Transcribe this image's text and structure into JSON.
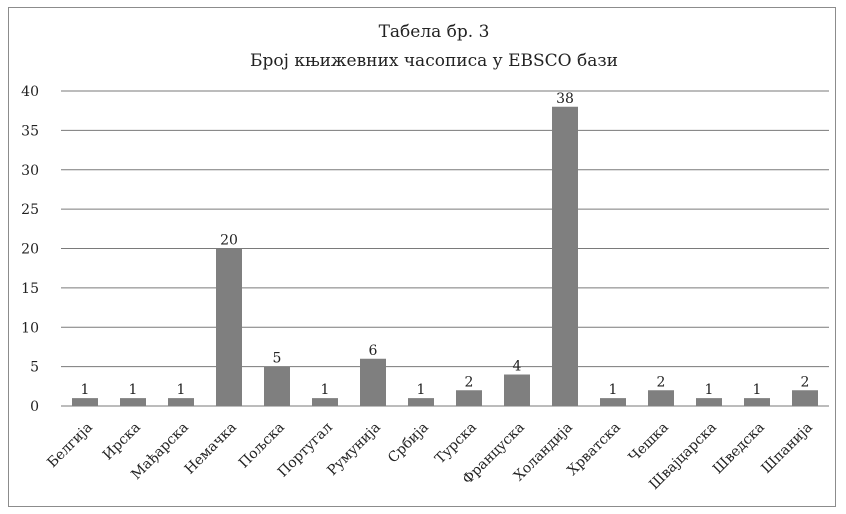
{
  "chart_data": {
    "type": "bar",
    "title": "Табела бр. 3",
    "subtitle": "Број књижевних часописа у EBSCO бази",
    "xlabel": "",
    "ylabel": "",
    "ylim": [
      0,
      40
    ],
    "yticks": [
      "0",
      "5",
      "10",
      "15",
      "20",
      "25",
      "30",
      "35",
      "40"
    ],
    "grid": true,
    "legend": "none",
    "bar_color": "#7f7f7f",
    "categories": [
      "Белгија",
      "Ирска",
      "Мађарска",
      "Немачка",
      "Пољска",
      "Португал",
      "Румунија",
      "Србија",
      "Турска",
      "Француска",
      "Холандија",
      "Хрватска",
      "Чешка",
      "Швајцарска",
      "Шведска",
      "Шпанија"
    ],
    "values": [
      1,
      1,
      1,
      20,
      5,
      1,
      6,
      1,
      2,
      4,
      38,
      1,
      2,
      1,
      1,
      2
    ],
    "data_labels": [
      "1",
      "1",
      "1",
      "20",
      "5",
      "1",
      "6",
      "1",
      "2",
      "4",
      "38",
      "1",
      "2",
      "1",
      "1",
      "2"
    ]
  }
}
